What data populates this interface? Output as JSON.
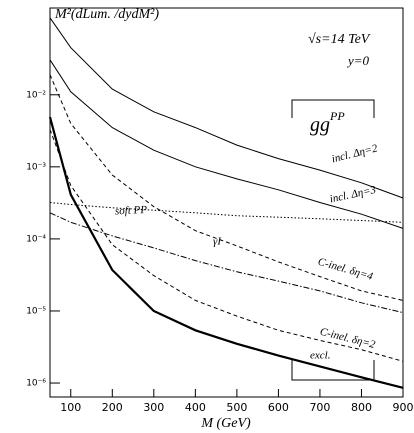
{
  "chart_data": {
    "type": "line",
    "y_label": "M²(dLum. /dydM²)",
    "x_label": "M (GeV)",
    "annotations": [
      "√s=14 TeV",
      "y=0"
    ],
    "box_label": {
      "base": "gg",
      "sup": "PP"
    },
    "x": [
      50,
      100,
      200,
      300,
      400,
      500,
      600,
      700,
      800,
      900
    ],
    "xlim": [
      50,
      900
    ],
    "xticks": [
      100,
      200,
      300,
      400,
      500,
      600,
      700,
      800,
      900
    ],
    "ylim": [
      6.4e-07,
      0.16
    ],
    "ylog": true,
    "yticks": [
      {
        "value": 1e-06,
        "label": "10⁻⁶"
      },
      {
        "value": 1e-05,
        "label": "10⁻⁵"
      },
      {
        "value": 0.0001,
        "label": "10⁻⁴"
      },
      {
        "value": 0.001,
        "label": "10⁻³"
      },
      {
        "value": 0.01,
        "label": "10⁻²"
      }
    ],
    "series": [
      {
        "name": "incl. Δη=2",
        "color": "#000000",
        "style": "solid",
        "linewidth": 1,
        "values": [
          0.117,
          0.045,
          0.012,
          0.0058,
          0.0035,
          0.002,
          0.0013,
          0.0009,
          0.0006,
          0.00037
        ]
      },
      {
        "name": "incl. Δη=3",
        "color": "#000000",
        "style": "solid",
        "linewidth": 1,
        "values": [
          0.0306,
          0.011,
          0.0035,
          0.0017,
          0.001,
          0.00068,
          0.00048,
          0.00032,
          0.00022,
          0.00014
        ]
      },
      {
        "name": "soft PP",
        "color": "#000000",
        "style": "dotted",
        "linewidth": 1,
        "values": [
          0.00032,
          0.0003,
          0.00027,
          0.00025,
          0.00023,
          0.00021,
          0.0002,
          0.00019,
          0.00018,
          0.00017
        ]
      },
      {
        "name": "γI",
        "color": "#000000",
        "style": "dashdot",
        "linewidth": 1,
        "values": [
          0.00023,
          0.00017,
          0.00011,
          7.5e-05,
          5e-05,
          3.5e-05,
          2.6e-05,
          1.9e-05,
          1.3e-05,
          9.5e-06
        ]
      },
      {
        "name": "C-inel. δη=4",
        "color": "#000000",
        "style": "dashed",
        "linewidth": 1,
        "values": [
          0.019,
          0.004,
          0.00077,
          0.00028,
          0.00013,
          8e-05,
          4.8e-05,
          3e-05,
          1.9e-05,
          1.4e-05
        ]
      },
      {
        "name": "C-inel. δη=2",
        "color": "#000000",
        "style": "dashed",
        "linewidth": 1,
        "values": [
          0.0033,
          0.00055,
          8.3e-05,
          3.1e-05,
          1.4e-05,
          8.5e-06,
          5.4e-06,
          3.9e-06,
          2.9e-06,
          2e-06
        ]
      },
      {
        "name": "excl.",
        "color": "#000000",
        "style": "solid",
        "linewidth": 2.2,
        "values": [
          0.0049,
          0.00041,
          3.7e-05,
          1e-05,
          5.4e-06,
          3.5e-06,
          2.4e-06,
          1.7e-06,
          1.2e-06,
          8.6e-07
        ]
      }
    ]
  }
}
